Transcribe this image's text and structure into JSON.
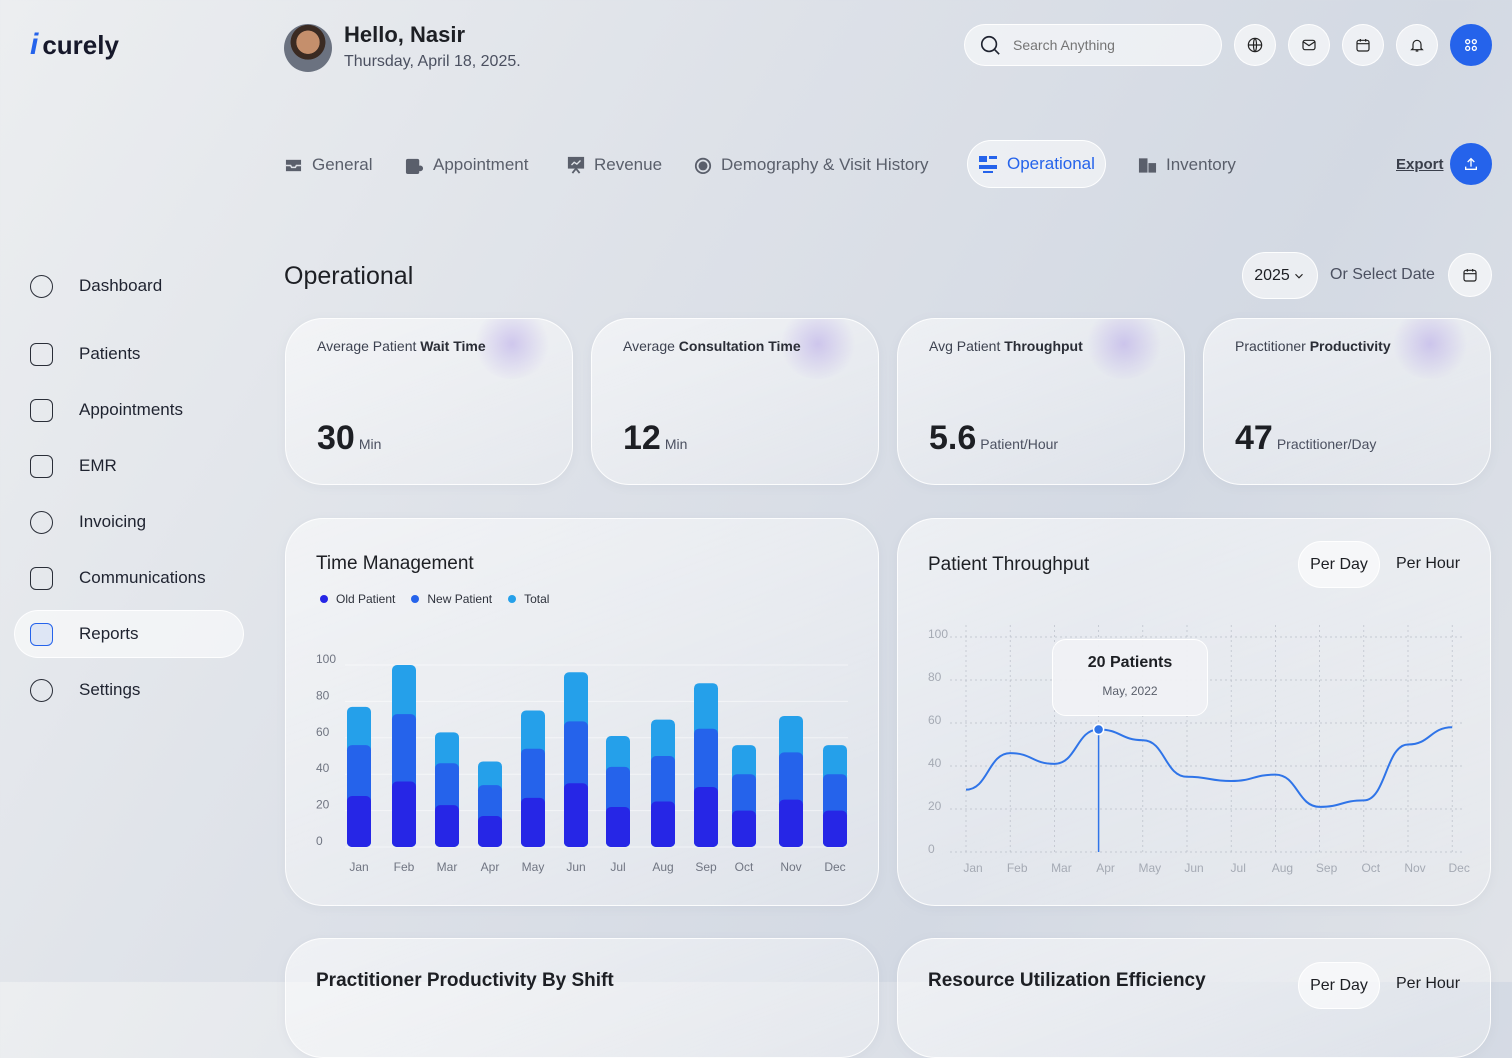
{
  "brand": {
    "name": "curely",
    "accent": "#2563eb"
  },
  "header": {
    "greeting": "Hello, Nasir",
    "date": "Thursday, April 18, 2025.",
    "search_placeholder": "Search Anything",
    "icons": [
      "globe-icon",
      "mail-icon",
      "calendar-icon",
      "bell-icon",
      "grid-icon"
    ]
  },
  "tabs": [
    {
      "label": "General",
      "icon": "inbox-icon"
    },
    {
      "label": "Appointment",
      "icon": "appointment-icon"
    },
    {
      "label": "Revenue",
      "icon": "presentation-chart-icon"
    },
    {
      "label": "Demography & Visit History",
      "icon": "timer-icon"
    },
    {
      "label": "Operational",
      "icon": "operational-icon",
      "active": true
    },
    {
      "label": "Inventory",
      "icon": "inventory-icon"
    }
  ],
  "export_label": "Export",
  "sidebar": {
    "items": [
      {
        "label": "Dashboard"
      },
      {
        "label": "Patients"
      },
      {
        "label": "Appointments"
      },
      {
        "label": "EMR"
      },
      {
        "label": "Invoicing"
      },
      {
        "label": "Communications"
      },
      {
        "label": "Reports",
        "active": true
      },
      {
        "label": "Settings"
      }
    ]
  },
  "page": {
    "title": "Operational",
    "year": "2025",
    "date_select": "Or Select Date"
  },
  "kpis": [
    {
      "label_pre": "Average Patient ",
      "label_bold": "Wait Time",
      "value": "30",
      "unit": "Min"
    },
    {
      "label_pre": "Average ",
      "label_bold": "Consultation Time",
      "value": "12",
      "unit": "Min"
    },
    {
      "label_pre": "Avg Patient ",
      "label_bold": "Throughput",
      "value": "5.6",
      "unit": "Patient/Hour"
    },
    {
      "label_pre": "Practitioner ",
      "label_bold": "Productivity",
      "value": "47",
      "unit": "Practitioner/Day"
    }
  ],
  "time_mgmt": {
    "title": "Time Management"
  },
  "throughput": {
    "title": "Patient Throughput",
    "toggle": [
      "Per Day",
      "Per Hour"
    ],
    "tooltip_value": "20 Patients",
    "tooltip_date": "May, 2022"
  },
  "bottom": {
    "left_title": "Practitioner Productivity By Shift",
    "right_title": "Resource Utilization Efficiency",
    "toggle": [
      "Per Day",
      "Per Hour"
    ]
  },
  "chart_data": [
    {
      "type": "bar",
      "stacked": true,
      "title": "Time Management",
      "categories": [
        "Jan",
        "Feb",
        "Mar",
        "Apr",
        "May",
        "Jun",
        "Jul",
        "Aug",
        "Sep",
        "Oct",
        "Nov",
        "Dec"
      ],
      "series": [
        {
          "name": "Old Patient",
          "color": "#2626e6",
          "values": [
            28,
            36,
            23,
            17,
            27,
            35,
            22,
            25,
            33,
            20,
            26,
            20
          ]
        },
        {
          "name": "New Patient",
          "color": "#2563eb",
          "values": [
            28,
            37,
            23,
            17,
            27,
            34,
            22,
            25,
            32,
            20,
            26,
            20
          ]
        },
        {
          "name": "Total",
          "color": "#25a0ea",
          "values": [
            77,
            100,
            63,
            47,
            75,
            96,
            61,
            70,
            90,
            56,
            72,
            56
          ]
        }
      ],
      "yticks": [
        0,
        20,
        40,
        60,
        80,
        100
      ],
      "ylim": [
        0,
        100
      ],
      "grid": true,
      "legend": "top-left",
      "note": "Total is the cumulative stack top"
    },
    {
      "type": "line",
      "title": "Patient Throughput",
      "categories": [
        "Jan",
        "Feb",
        "Mar",
        "Apr",
        "May",
        "Jun",
        "Jul",
        "Aug",
        "Sep",
        "Oct",
        "Nov",
        "Dec"
      ],
      "values": [
        29,
        46,
        41,
        57,
        52,
        35,
        33,
        36,
        21,
        24,
        50,
        58
      ],
      "color": "#2f74e8",
      "yticks": [
        0,
        20,
        40,
        60,
        80,
        100
      ],
      "ylim": [
        0,
        100
      ],
      "grid": "dashed",
      "highlight_index": 3
    }
  ]
}
